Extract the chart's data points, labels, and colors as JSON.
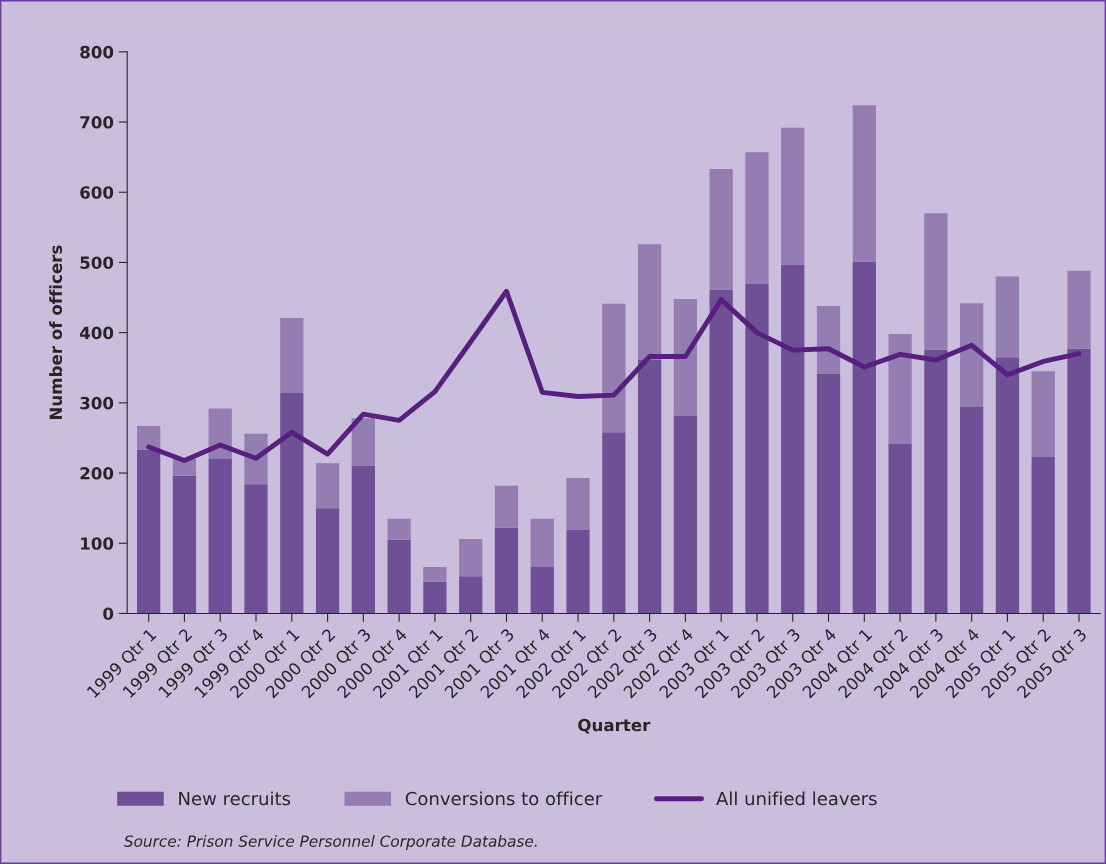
{
  "chart_data": {
    "type": "bar",
    "stacked": true,
    "xlabel": "Quarter",
    "ylabel": "Number of officers",
    "categories": [
      "1999 Qtr 1",
      "1999 Qtr 2",
      "1999 Qtr 3",
      "1999 Qtr 4",
      "2000 Qtr 1",
      "2000 Qtr 2",
      "2000 Qtr 3",
      "2000 Qtr 4",
      "2001 Qtr 1",
      "2001 Qtr 2",
      "2001 Qtr 3",
      "2001 Qtr 4",
      "2002 Qtr 1",
      "2002 Qtr 2",
      "2002 Qtr 3",
      "2002 Qtr 4",
      "2003 Qtr 1",
      "2003 Qtr 2",
      "2003 Qtr 3",
      "2003 Qtr 4",
      "2004 Qtr 1",
      "2004 Qtr 2",
      "2004 Qtr 3",
      "2004 Qtr 4",
      "2005 Qtr 1",
      "2005 Qtr 2",
      "2005 Qtr 3"
    ],
    "series": [
      {
        "name": "New recruits",
        "color": "#6f5096",
        "values": [
          233,
          196,
          220,
          184,
          314,
          150,
          210,
          105,
          45,
          53,
          122,
          66,
          119,
          258,
          361,
          282,
          461,
          470,
          497,
          341,
          501,
          242,
          376,
          294,
          365,
          223,
          377
        ]
      },
      {
        "name": "Conversions to officer",
        "color": "#937db1",
        "values": [
          34,
          24,
          72,
          72,
          107,
          64,
          68,
          30,
          21,
          53,
          60,
          69,
          74,
          183,
          165,
          166,
          172,
          187,
          195,
          97,
          223,
          156,
          194,
          148,
          115,
          122,
          111
        ]
      },
      {
        "name": "All unified leavers",
        "type": "line",
        "color": "#561f80",
        "values": [
          237,
          218,
          240,
          221,
          258,
          227,
          284,
          275,
          316,
          387,
          459,
          315,
          309,
          311,
          366,
          366,
          447,
          400,
          375,
          377,
          351,
          369,
          361,
          382,
          340,
          359,
          370
        ]
      }
    ],
    "ylim": [
      0,
      800
    ],
    "yticks": [
      0,
      100,
      200,
      300,
      400,
      500,
      600,
      700,
      800
    ],
    "grid": false,
    "legend": "bottom",
    "annotations": [
      "Source: Prison Service Personnel Corporate Database."
    ]
  }
}
